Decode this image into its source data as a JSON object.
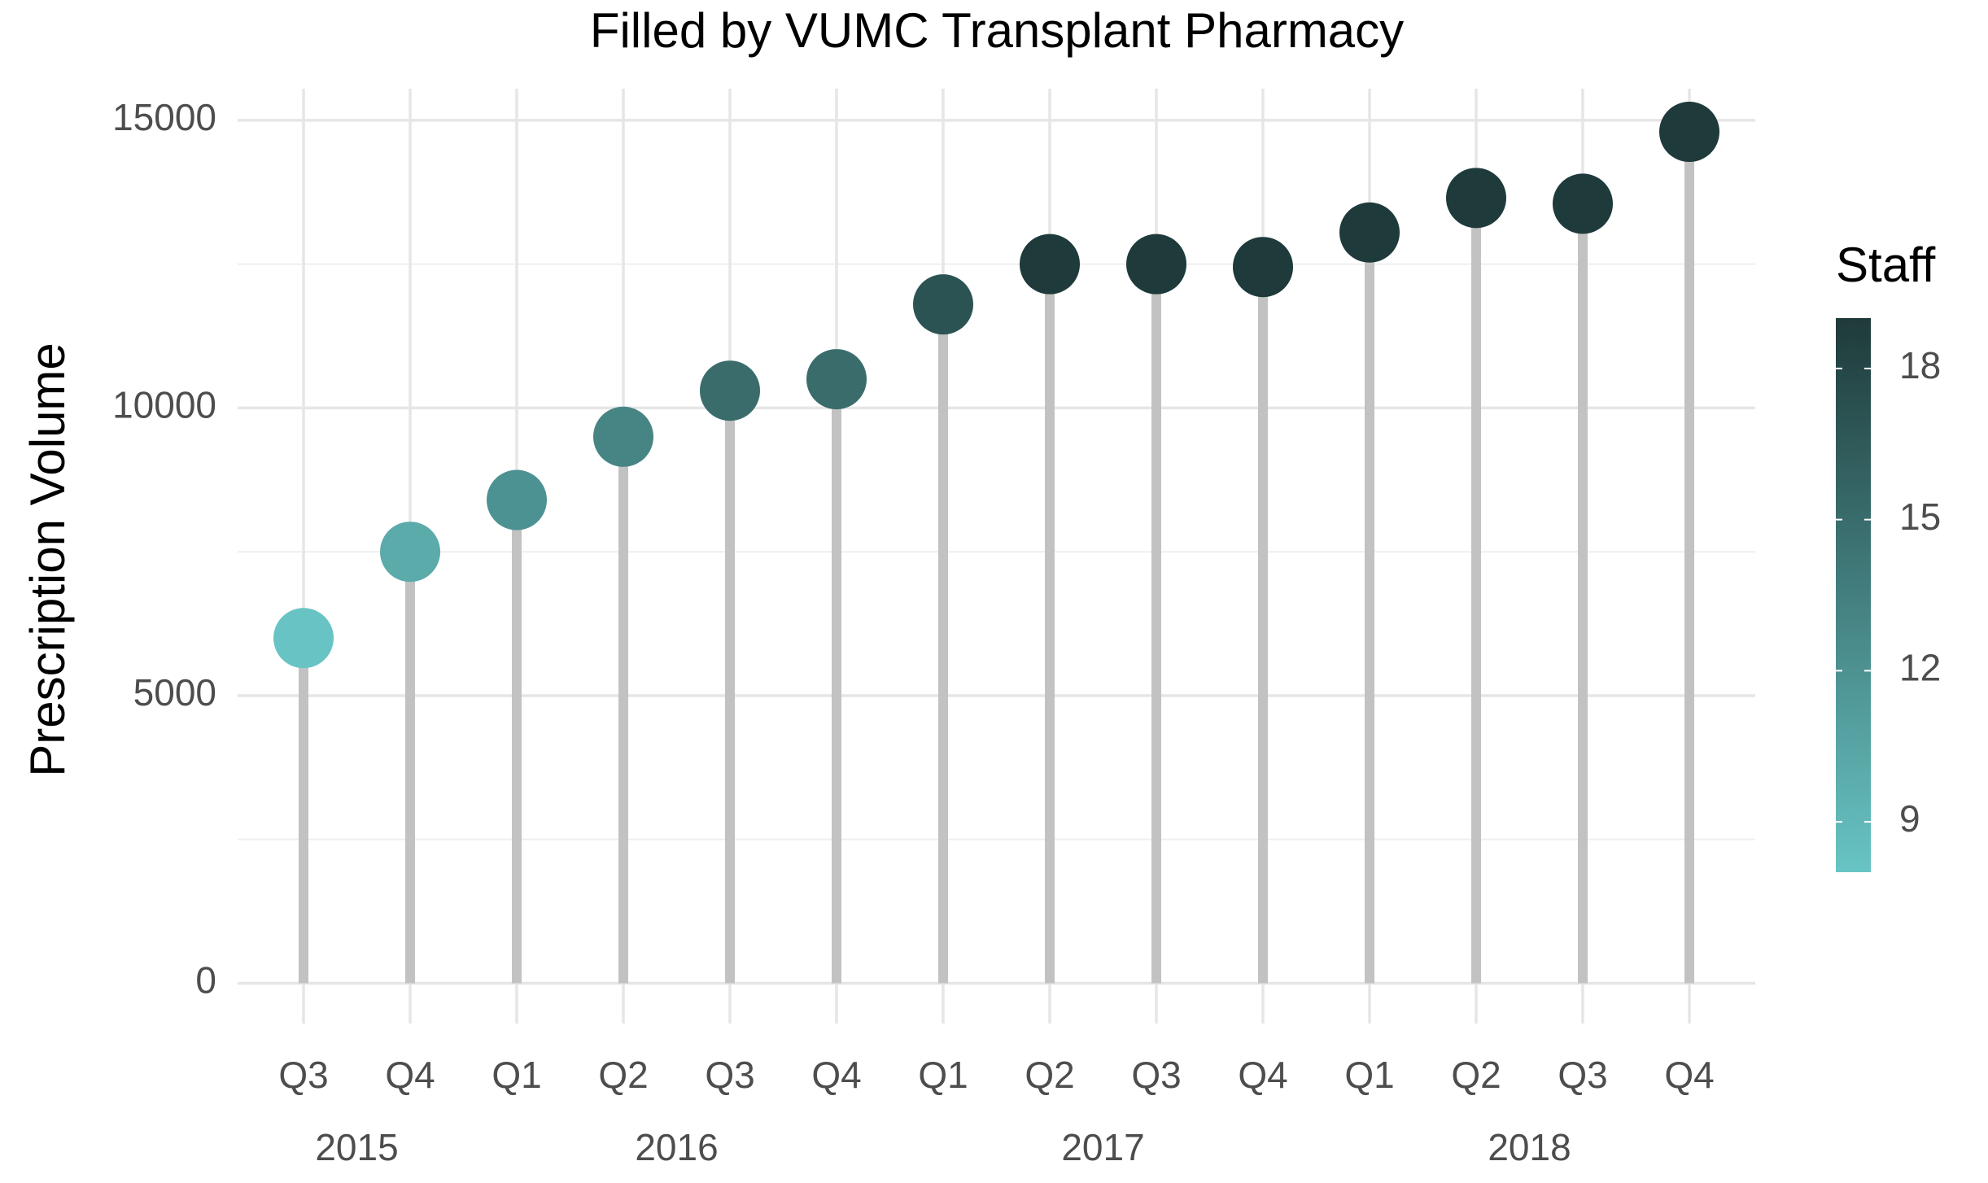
{
  "chart_data": {
    "type": "lollipop",
    "title": "Filled by VUMC Transplant Pharmacy",
    "y_label": "Prescription Volume",
    "categories": [
      "Q3",
      "Q4",
      "Q1",
      "Q2",
      "Q3",
      "Q4",
      "Q1",
      "Q2",
      "Q3",
      "Q4",
      "Q1",
      "Q2",
      "Q3",
      "Q4"
    ],
    "x_groups": [
      "2015",
      "2016",
      "2017",
      "2018"
    ],
    "values": [
      6000,
      7500,
      8400,
      9500,
      10300,
      10500,
      11800,
      12500,
      12500,
      12450,
      13050,
      13650,
      13550,
      14800
    ],
    "color_values": [
      8,
      10,
      12,
      13,
      15,
      15,
      17,
      19,
      19,
      19,
      19,
      19,
      19,
      19
    ],
    "color_label": "Staff",
    "color_lim": [
      8,
      19
    ],
    "color_ticks": [
      9,
      12,
      15,
      18
    ],
    "color_low": "#68c4c4",
    "color_high": "#1f3a3a",
    "stem_color": "#c2c2c2",
    "ylim": [
      -700,
      15550
    ],
    "yticks": [
      0,
      5000,
      10000,
      15000
    ],
    "minor_grid": [
      2500,
      7500,
      12500
    ],
    "grid": true
  }
}
